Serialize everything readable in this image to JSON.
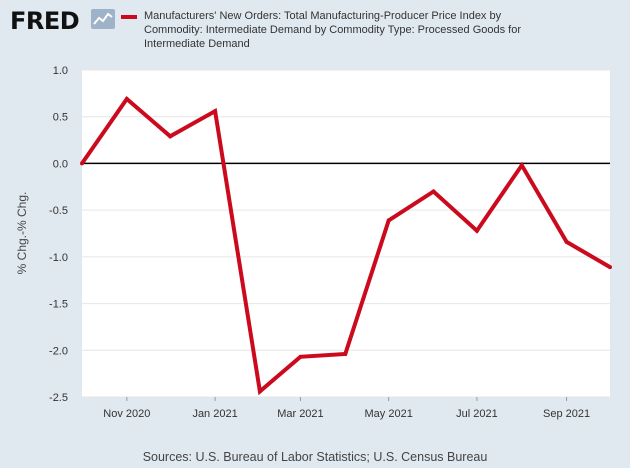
{
  "brand": {
    "logo_text": "FRED",
    "logo_icon": "chart-trend-icon"
  },
  "colors": {
    "series": "#cc0a1e",
    "plot_bg": "#ffffff",
    "page_bg": "#e1e9f0",
    "grid": "#e6e6e6",
    "zero_line": "#000000"
  },
  "source_text": "Sources: U.S. Bureau of Labor Statistics; U.S. Census Bureau",
  "chart_data": {
    "type": "line",
    "ylabel": "% Chg.-% Chg.",
    "xlabel": "",
    "ylim": [
      -2.5,
      1.0
    ],
    "xlim": [
      "2020-10-01",
      "2021-10-01"
    ],
    "yticks": [
      "1.0",
      "0.5",
      "0.0",
      "-0.5",
      "-1.0",
      "-1.5",
      "-2.0",
      "-2.5"
    ],
    "xticks": [
      {
        "label": "Nov 2020",
        "date": "2020-11-01"
      },
      {
        "label": "Jan 2021",
        "date": "2021-01-01"
      },
      {
        "label": "Mar 2021",
        "date": "2021-03-01"
      },
      {
        "label": "May 2021",
        "date": "2021-05-01"
      },
      {
        "label": "Jul 2021",
        "date": "2021-07-01"
      },
      {
        "label": "Sep 2021",
        "date": "2021-09-01"
      }
    ],
    "grid": true,
    "legend": "top",
    "series": [
      {
        "name": "Manufacturers' New Orders: Total Manufacturing-Producer Price Index by Commodity: Intermediate Demand by Commodity Type: Processed Goods for Intermediate Demand",
        "color": "#cc0a1e",
        "points": [
          {
            "x": "2020-10-01",
            "y": 0.0
          },
          {
            "x": "2020-11-01",
            "y": 0.69
          },
          {
            "x": "2020-12-01",
            "y": 0.29
          },
          {
            "x": "2021-01-01",
            "y": 0.56
          },
          {
            "x": "2021-02-01",
            "y": -2.44
          },
          {
            "x": "2021-03-01",
            "y": -2.07
          },
          {
            "x": "2021-04-01",
            "y": -2.04
          },
          {
            "x": "2021-05-01",
            "y": -0.61
          },
          {
            "x": "2021-06-01",
            "y": -0.3
          },
          {
            "x": "2021-07-01",
            "y": -0.72
          },
          {
            "x": "2021-08-01",
            "y": -0.02
          },
          {
            "x": "2021-09-01",
            "y": -0.84
          },
          {
            "x": "2021-10-01",
            "y": -1.11
          }
        ]
      }
    ]
  }
}
